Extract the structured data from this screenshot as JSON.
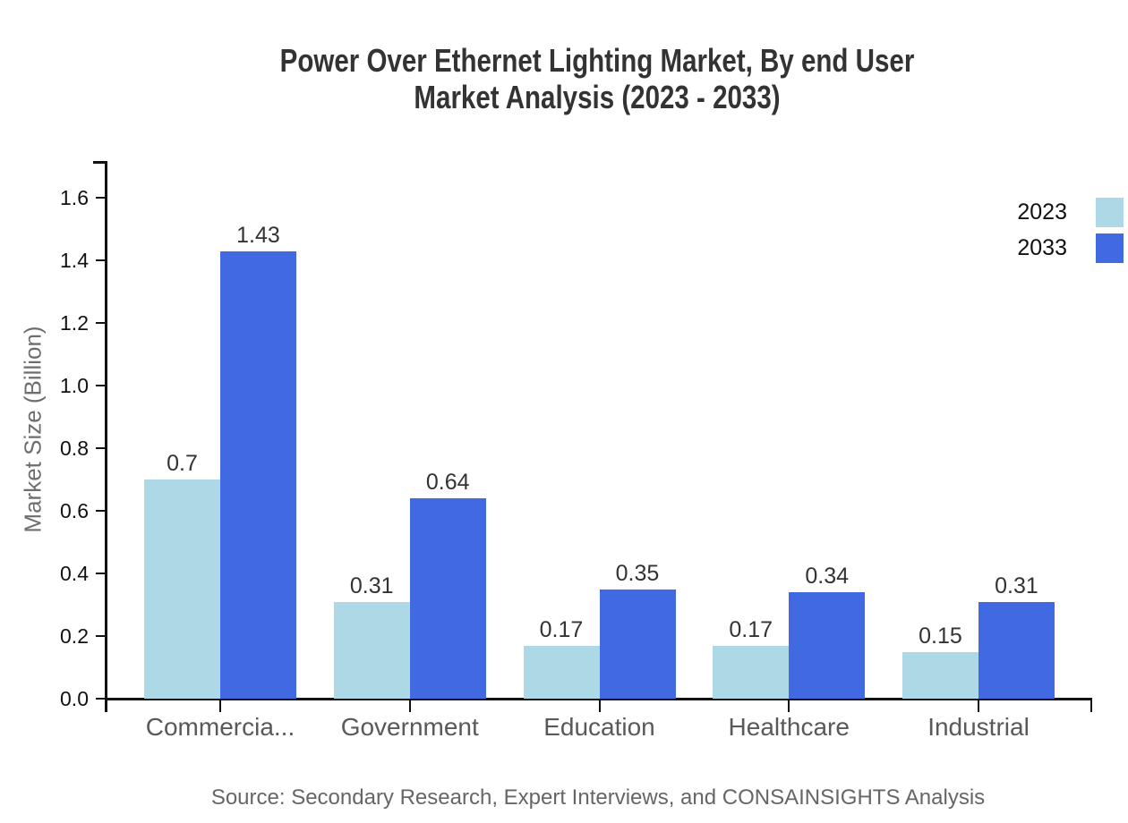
{
  "title": {
    "line1": "Power Over Ethernet Lighting Market, By end User",
    "line2": "Market Analysis (2023 - 2033)"
  },
  "source": "Source: Secondary Research, Expert Interviews, and CONSAINSIGHTS Analysis",
  "legend": {
    "position": "top-right",
    "items": [
      {
        "label": "2023",
        "color": "#ADD8E6"
      },
      {
        "label": "2033",
        "color": "#4169E1"
      }
    ]
  },
  "chart_data": {
    "type": "bar",
    "title": "Power Over Ethernet Lighting Market, By end User Market Analysis (2023 - 2033)",
    "categories": [
      "Commercia...",
      "Government",
      "Education",
      "Healthcare",
      "Industrial"
    ],
    "series": [
      {
        "name": "2023",
        "color": "#ADD8E6",
        "values": [
          0.7,
          0.31,
          0.17,
          0.17,
          0.15
        ],
        "labels": [
          "0.7",
          "0.31",
          "0.17",
          "0.17",
          "0.15"
        ]
      },
      {
        "name": "2033",
        "color": "#4169E1",
        "values": [
          1.43,
          0.64,
          0.35,
          0.34,
          0.31
        ],
        "labels": [
          "1.43",
          "0.64",
          "0.35",
          "0.34",
          "0.31"
        ]
      }
    ],
    "xlabel": "",
    "ylabel": "Market Size (Billion)",
    "yticks": [
      0.0,
      0.2,
      0.4,
      0.6,
      0.8,
      1.0,
      1.2,
      1.4,
      1.6
    ],
    "ytick_labels": [
      "0.0",
      "0.2",
      "0.4",
      "0.6",
      "0.8",
      "1.0",
      "1.2",
      "1.4",
      "1.6"
    ],
    "ylim": [
      0,
      1.72
    ],
    "grid": false,
    "legend_position": "top-right",
    "axis_color": "#111111",
    "background": "#ffffff"
  }
}
